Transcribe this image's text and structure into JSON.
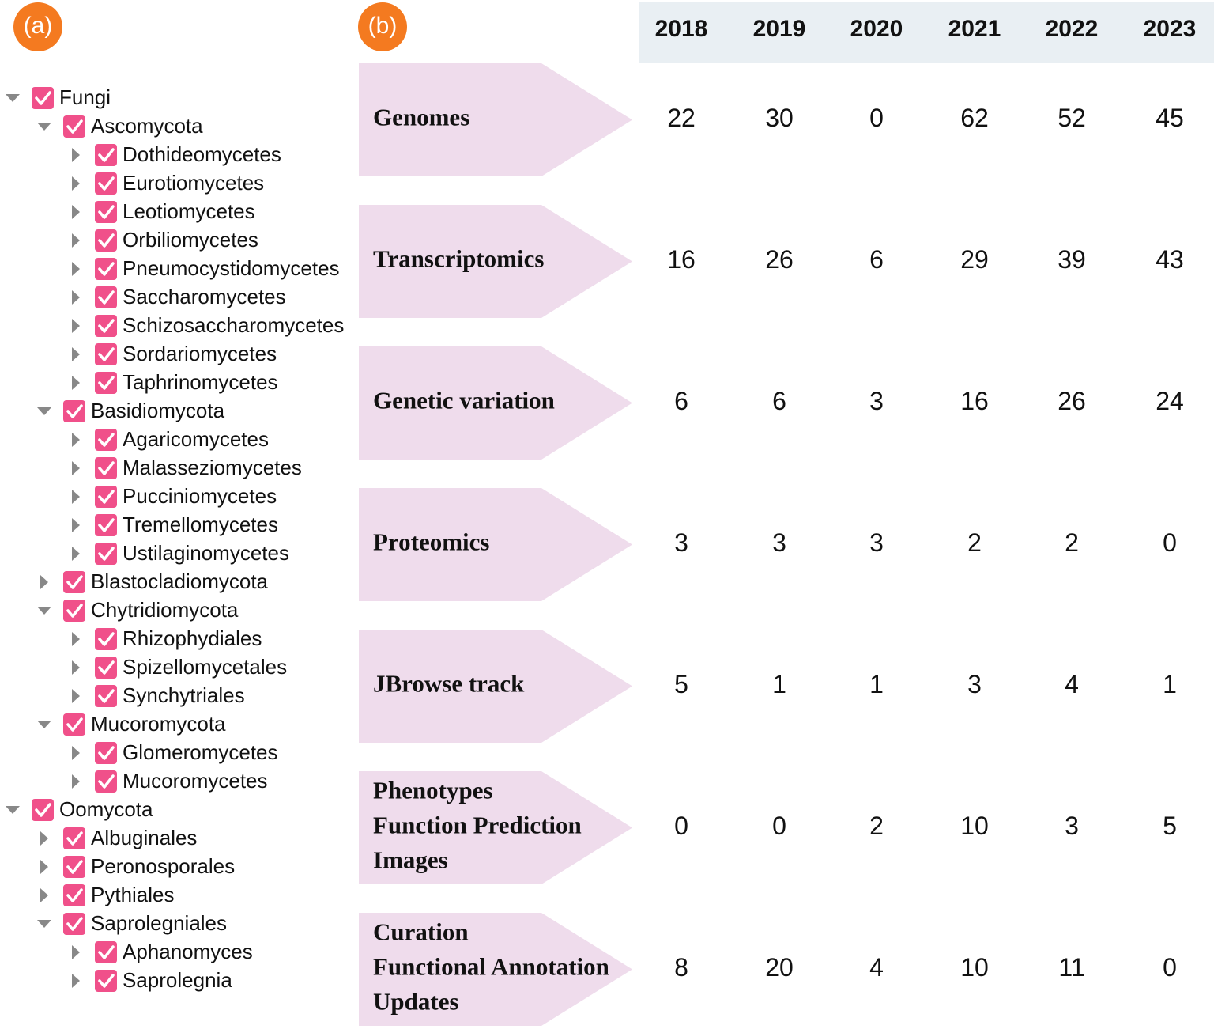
{
  "panels": {
    "a": "(a)",
    "b": "(b)"
  },
  "tree": [
    {
      "label": "Fungi",
      "children": [
        {
          "label": "Ascomycota",
          "children": [
            {
              "label": "Dothideomycetes"
            },
            {
              "label": "Eurotiomycetes"
            },
            {
              "label": "Leotiomycetes"
            },
            {
              "label": "Orbiliomycetes"
            },
            {
              "label": "Pneumocystidomycetes"
            },
            {
              "label": "Saccharomycetes"
            },
            {
              "label": "Schizosaccharomycetes"
            },
            {
              "label": "Sordariomycetes"
            },
            {
              "label": "Taphrinomycetes"
            }
          ]
        },
        {
          "label": "Basidiomycota",
          "children": [
            {
              "label": "Agaricomycetes"
            },
            {
              "label": "Malasseziomycetes"
            },
            {
              "label": "Pucciniomycetes"
            },
            {
              "label": "Tremellomycetes"
            },
            {
              "label": "Ustilaginomycetes"
            }
          ]
        },
        {
          "label": "Blastocladiomycota"
        },
        {
          "label": "Chytridiomycota",
          "children": [
            {
              "label": "Rhizophydiales"
            },
            {
              "label": "Spizellomycetales"
            },
            {
              "label": "Synchytriales"
            }
          ]
        },
        {
          "label": "Mucoromycota",
          "children": [
            {
              "label": "Glomeromycetes"
            },
            {
              "label": "Mucoromycetes"
            }
          ]
        }
      ]
    },
    {
      "label": "Oomycota",
      "children": [
        {
          "label": "Albuginales"
        },
        {
          "label": "Peronosporales"
        },
        {
          "label": "Pythiales"
        },
        {
          "label": "Saprolegniales",
          "children": [
            {
              "label": "Aphanomyces"
            },
            {
              "label": "Saprolegnia"
            }
          ]
        }
      ]
    }
  ],
  "table": {
    "years": [
      2018,
      2019,
      2020,
      2021,
      2022,
      2023
    ],
    "rows": [
      {
        "label": [
          "Genomes"
        ],
        "values": [
          22,
          30,
          0,
          62,
          52,
          45
        ]
      },
      {
        "label": [
          "Transcriptomics"
        ],
        "values": [
          16,
          26,
          6,
          29,
          39,
          43
        ]
      },
      {
        "label": [
          "Genetic variation"
        ],
        "values": [
          6,
          6,
          3,
          16,
          26,
          24
        ]
      },
      {
        "label": [
          "Proteomics"
        ],
        "values": [
          3,
          3,
          3,
          2,
          2,
          0
        ]
      },
      {
        "label": [
          "JBrowse track"
        ],
        "values": [
          5,
          1,
          1,
          3,
          4,
          1
        ]
      },
      {
        "label": [
          "Phenotypes",
          "Function Prediction",
          "Images"
        ],
        "values": [
          0,
          0,
          2,
          10,
          3,
          5
        ]
      },
      {
        "label": [
          "Curation",
          "Functional Annotation",
          "Updates"
        ],
        "values": [
          8,
          20,
          4,
          10,
          11,
          0
        ]
      }
    ]
  }
}
